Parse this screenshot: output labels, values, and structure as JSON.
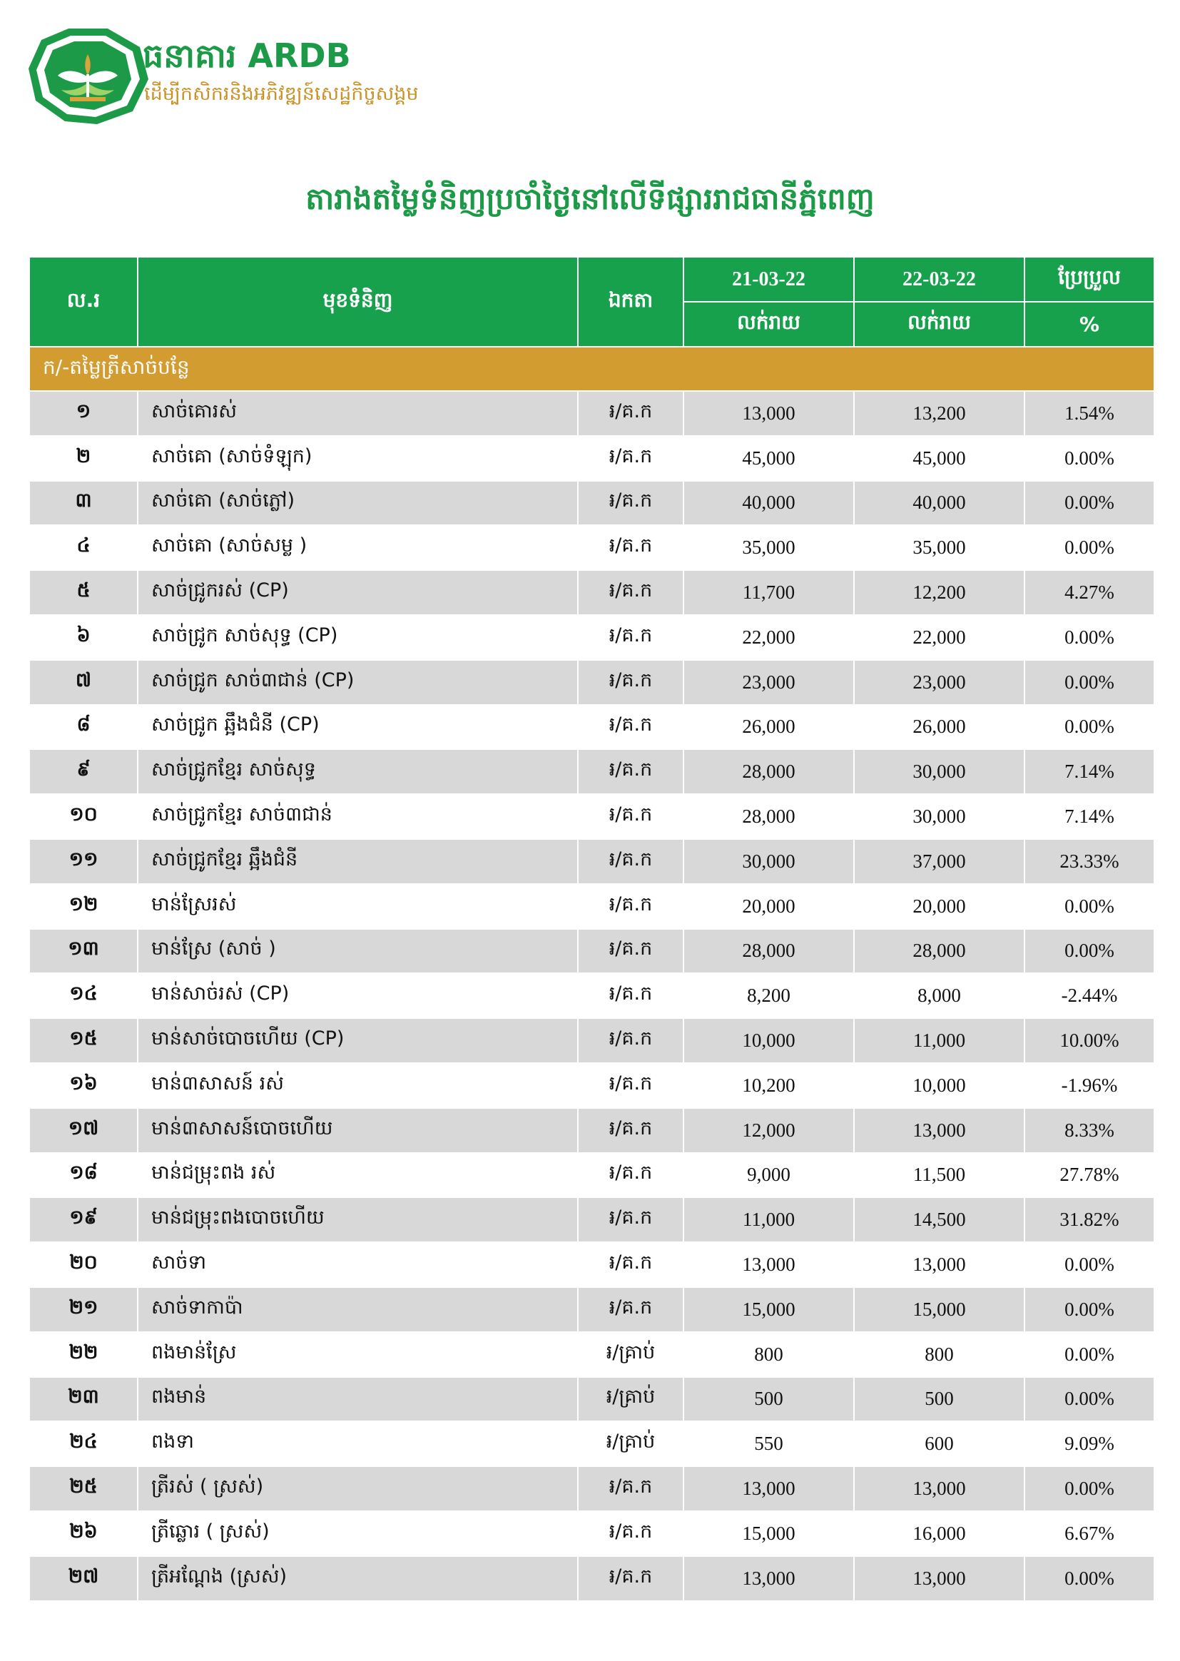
{
  "header": {
    "bank_name": "ធនាគារ ARDB",
    "slogan": "ដើម្បីកសិករនិងអភិវឌ្ឍន៍សេដ្ឋកិច្ចសង្គម",
    "title": "តារាងតម្លៃទំនិញប្រចាំថ្ងៃនៅលើទីផ្សាររាជធានីភ្នំពេញ"
  },
  "table": {
    "columns": {
      "no": "ល.រ",
      "item": "មុខទំនិញ",
      "unit": "ឯកតា",
      "date1": "21-03-22",
      "date2": "22-03-22",
      "change": "ប្រែប្រួល",
      "retail1": "លក់រាយ",
      "retail2": "លក់រាយ",
      "percent": "%"
    },
    "section": "ក/-តម្លៃត្រីសាច់បន្លែ",
    "rows": [
      [
        "១",
        "សាច់គោរស់",
        "៛/គ.ក",
        "13,000",
        "13,200",
        "1.54%"
      ],
      [
        "២",
        "សាច់គោ (សាច់ទំឡុក)",
        "៛/គ.ក",
        "45,000",
        "45,000",
        "0.00%"
      ],
      [
        "៣",
        "សាច់គោ (សាច់ភ្លៅ)",
        "៛/គ.ក",
        "40,000",
        "40,000",
        "0.00%"
      ],
      [
        "៤",
        "សាច់គោ (សាច់សម្ល )",
        "៛/គ.ក",
        "35,000",
        "35,000",
        "0.00%"
      ],
      [
        "៥",
        "សាច់ជ្រូករស់ (CP)",
        "៛/គ.ក",
        "11,700",
        "12,200",
        "4.27%"
      ],
      [
        "៦",
        "សាច់ជ្រូក សាច់សុទ្ធ (CP)",
        "៛/គ.ក",
        "22,000",
        "22,000",
        "0.00%"
      ],
      [
        "៧",
        "សាច់ជ្រូក សាច់៣ជាន់ (CP)",
        "៛/គ.ក",
        "23,000",
        "23,000",
        "0.00%"
      ],
      [
        "៨",
        "សាច់ជ្រូក ឆ្អឹងជំនី (CP)",
        "៛/គ.ក",
        "26,000",
        "26,000",
        "0.00%"
      ],
      [
        "៩",
        "សាច់ជ្រូកខ្មែរ សាច់សុទ្ធ",
        "៛/គ.ក",
        "28,000",
        "30,000",
        "7.14%"
      ],
      [
        "១០",
        "សាច់ជ្រូកខ្មែរ សាច់៣ជាន់",
        "៛/គ.ក",
        "28,000",
        "30,000",
        "7.14%"
      ],
      [
        "១១",
        "សាច់ជ្រូកខ្មែរ ឆ្អឹងជំនី",
        "៛/គ.ក",
        "30,000",
        "37,000",
        "23.33%"
      ],
      [
        "១២",
        "មាន់ស្រែរស់",
        "៛/គ.ក",
        "20,000",
        "20,000",
        "0.00%"
      ],
      [
        "១៣",
        "មាន់ស្រែ (សាច់ )",
        "៛/គ.ក",
        "28,000",
        "28,000",
        "0.00%"
      ],
      [
        "១៤",
        "មាន់សាច់រស់ (CP)",
        "៛/គ.ក",
        "8,200",
        "8,000",
        "-2.44%"
      ],
      [
        "១៥",
        "មាន់សាច់បោចហើយ (CP)",
        "៛/គ.ក",
        "10,000",
        "11,000",
        "10.00%"
      ],
      [
        "១៦",
        "មាន់៣សាសន៍ រស់",
        "៛/គ.ក",
        "10,200",
        "10,000",
        "-1.96%"
      ],
      [
        "១៧",
        "មាន់៣សាសន៍បោចហើយ",
        "៛/គ.ក",
        "12,000",
        "13,000",
        "8.33%"
      ],
      [
        "១៨",
        "មាន់ជម្រុះពង រស់",
        "៛/គ.ក",
        "9,000",
        "11,500",
        "27.78%"
      ],
      [
        "១៩",
        "មាន់ជម្រុះពងបោចហើយ",
        "៛/គ.ក",
        "11,000",
        "14,500",
        "31.82%"
      ],
      [
        "២០",
        "សាច់ទា",
        "៛/គ.ក",
        "13,000",
        "13,000",
        "0.00%"
      ],
      [
        "២១",
        "សាច់ទាកាប៉ា",
        "៛/គ.ក",
        "15,000",
        "15,000",
        "0.00%"
      ],
      [
        "២២",
        "ពងមាន់ស្រែ",
        "៛/គ្រាប់",
        "800",
        "800",
        "0.00%"
      ],
      [
        "២៣",
        "ពងមាន់",
        "៛/គ្រាប់",
        "500",
        "500",
        "0.00%"
      ],
      [
        "២៤",
        "ពងទា",
        "៛/គ្រាប់",
        "550",
        "600",
        "9.09%"
      ],
      [
        "២៥",
        "ត្រីរស់ ( ស្រស់)",
        "៛/គ.ក",
        "13,000",
        "13,000",
        "0.00%"
      ],
      [
        "២៦",
        "ត្រីឆ្លោរ ( ស្រស់)",
        "៛/គ.ក",
        "15,000",
        "16,000",
        "6.67%"
      ],
      [
        "២៧",
        "ត្រីអណ្តែង (ស្រស់)",
        "៛/គ.ក",
        "13,000",
        "13,000",
        "0.00%"
      ]
    ]
  }
}
